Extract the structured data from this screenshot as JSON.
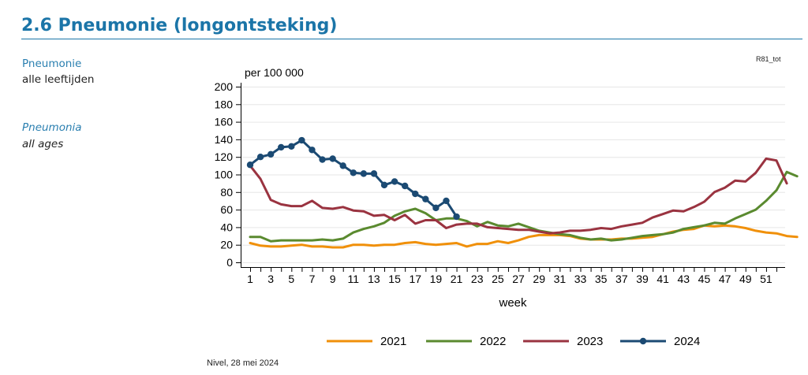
{
  "page": {
    "section_title": "2.6 Pneumonie (longontsteking)",
    "side_nl_title": "Pneumonie",
    "side_nl_sub": "alle leeftijden",
    "side_en_title": "Pneumonia",
    "side_en_sub": "all ages",
    "chart_code": "R81_tot",
    "footer": "Nivel, 28 mei 2024"
  },
  "chart_data": {
    "type": "line",
    "ylabel": "per 100 000",
    "xlabel": "week",
    "ylim": [
      0,
      200
    ],
    "xlim": [
      1,
      52
    ],
    "yticks": [
      0,
      20,
      40,
      60,
      80,
      100,
      120,
      140,
      160,
      180,
      200
    ],
    "xticks": [
      1,
      3,
      5,
      7,
      9,
      11,
      13,
      15,
      17,
      19,
      21,
      23,
      25,
      27,
      29,
      31,
      33,
      35,
      37,
      39,
      41,
      43,
      45,
      47,
      49,
      51
    ],
    "grid": true,
    "legend": "bottom",
    "series": [
      {
        "name": "2021",
        "color": "#f0900a",
        "markers": false,
        "values": [
          22,
          19,
          18,
          18,
          19,
          20,
          18,
          18,
          17,
          17,
          20,
          20,
          19,
          20,
          20,
          22,
          23,
          21,
          20,
          21,
          22,
          18,
          21,
          21,
          24,
          22,
          25,
          29,
          31,
          31,
          31,
          30,
          27,
          26,
          26,
          26,
          27,
          27,
          28,
          29,
          32,
          35,
          37,
          38,
          42,
          41,
          42,
          41,
          39,
          36,
          34,
          33,
          30,
          29
        ]
      },
      {
        "name": "2022",
        "color": "#5a8a2f",
        "markers": false,
        "values": [
          29,
          29,
          24,
          25,
          25,
          25,
          25,
          26,
          25,
          27,
          34,
          38,
          41,
          45,
          53,
          58,
          61,
          56,
          48,
          50,
          50,
          47,
          41,
          46,
          42,
          41,
          44,
          40,
          36,
          34,
          32,
          31,
          28,
          26,
          27,
          25,
          26,
          28,
          30,
          31,
          32,
          34,
          38,
          40,
          42,
          45,
          44,
          50,
          55,
          60,
          70,
          82,
          103,
          98
        ]
      },
      {
        "name": "2023",
        "color": "#9a3340",
        "markers": false,
        "values": [
          110,
          95,
          71,
          66,
          64,
          64,
          70,
          62,
          61,
          63,
          59,
          58,
          53,
          54,
          48,
          54,
          44,
          48,
          48,
          39,
          43,
          44,
          44,
          40,
          39,
          38,
          37,
          37,
          35,
          33,
          34,
          36,
          36,
          37,
          39,
          38,
          41,
          43,
          45,
          51,
          55,
          59,
          58,
          63,
          69,
          80,
          85,
          93,
          92,
          102,
          118,
          116,
          90
        ]
      },
      {
        "name": "2024",
        "color": "#1b4a73",
        "markers": true,
        "values": [
          111,
          120,
          123,
          131,
          132,
          139,
          128,
          117,
          118,
          110,
          102,
          101,
          101,
          88,
          92,
          87,
          78,
          72,
          62,
          70,
          52
        ]
      }
    ]
  }
}
